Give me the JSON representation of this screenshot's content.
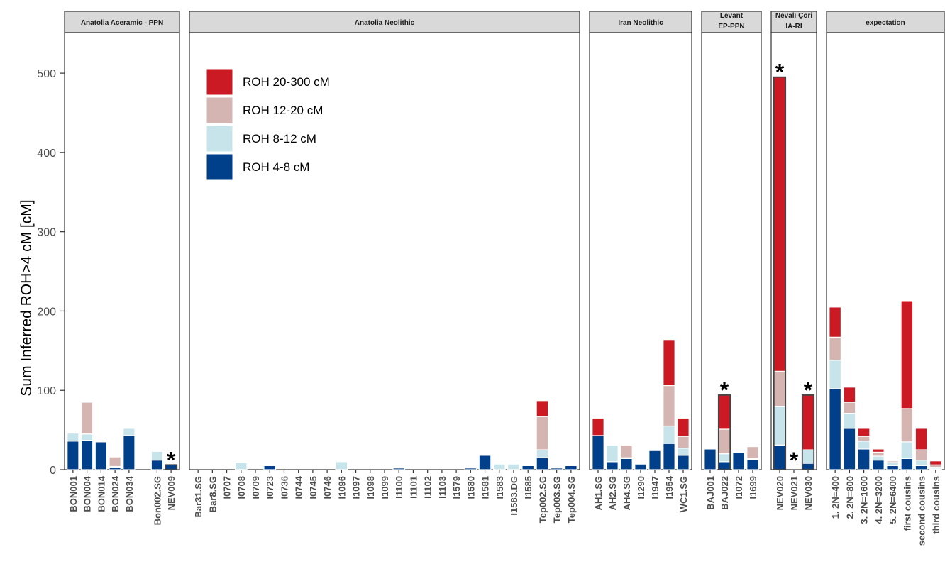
{
  "chart_data": {
    "type": "bar",
    "stacked": true,
    "ylabel": "Sum Inferred ROH>4 cM [cM]",
    "ylim": [
      0,
      550
    ],
    "yticks": [
      0,
      100,
      200,
      300,
      400,
      500
    ],
    "grid": false,
    "legend_position": "top-left of the Anatolia Neolithic panel",
    "legend": [
      {
        "key": "r20",
        "label": "ROH 20-300 cM",
        "color": "#cb1a24"
      },
      {
        "key": "r12",
        "label": "ROH 12-20 cM",
        "color": "#d5b5b1"
      },
      {
        "key": "r8",
        "label": "ROH 8-12 cM",
        "color": "#c7e4ea"
      },
      {
        "key": "r4",
        "label": "ROH 4-8 cM",
        "color": "#003f8a"
      }
    ],
    "stack_order": [
      "r4",
      "r8",
      "r12",
      "r20"
    ],
    "panels": [
      {
        "title": [
          "Anatolia Aceramic -  PPN"
        ],
        "samples": [
          {
            "name": "BON001",
            "r4": 36,
            "r8": 10,
            "r12": 0,
            "r20": 0
          },
          {
            "name": "BON004",
            "r4": 37,
            "r8": 8,
            "r12": 40,
            "r20": 0
          },
          {
            "name": "BON014",
            "r4": 35,
            "r8": 0,
            "r12": 0,
            "r20": 0
          },
          {
            "name": "BON024",
            "r4": 3,
            "r8": 1,
            "r12": 12,
            "r20": 0
          },
          {
            "name": "BON034",
            "r4": 43,
            "r8": 9,
            "r12": 0,
            "r20": 0
          },
          {
            "name": "",
            "r4": 0,
            "r8": 0,
            "r12": 0,
            "r20": 0
          },
          {
            "name": "Bon002.SG",
            "r4": 12,
            "r8": 11,
            "r12": 0,
            "r20": 0
          },
          {
            "name": "NEV009",
            "r4": 6,
            "r8": 0,
            "r12": 0,
            "r20": 0,
            "star": "top",
            "outlined": true
          }
        ]
      },
      {
        "title": [
          "Anatolia Neolithic"
        ],
        "samples": [
          {
            "name": "Bar31.SG",
            "r4": 0,
            "r8": 0,
            "r12": 0,
            "r20": 0
          },
          {
            "name": "Bar8.SG",
            "r4": 0,
            "r8": 0,
            "r12": 0,
            "r20": 0
          },
          {
            "name": "I0707",
            "r4": 0,
            "r8": 0,
            "r12": 0,
            "r20": 0
          },
          {
            "name": "I0708",
            "r4": 0,
            "r8": 9,
            "r12": 0,
            "r20": 0
          },
          {
            "name": "I0709",
            "r4": 0,
            "r8": 0,
            "r12": 0,
            "r20": 0
          },
          {
            "name": "I0723",
            "r4": 5,
            "r8": 0,
            "r12": 0,
            "r20": 0
          },
          {
            "name": "I0736",
            "r4": 0,
            "r8": 0,
            "r12": 0,
            "r20": 0
          },
          {
            "name": "I0744",
            "r4": 0,
            "r8": 0,
            "r12": 0,
            "r20": 0
          },
          {
            "name": "I0745",
            "r4": 0,
            "r8": 0,
            "r12": 0,
            "r20": 0
          },
          {
            "name": "I0746",
            "r4": 0,
            "r8": 0,
            "r12": 0,
            "r20": 0
          },
          {
            "name": "I1096",
            "r4": 0,
            "r8": 10,
            "r12": 0,
            "r20": 0
          },
          {
            "name": "I1097",
            "r4": 0,
            "r8": 0,
            "r12": 0,
            "r20": 0
          },
          {
            "name": "I1098",
            "r4": 0,
            "r8": 0,
            "r12": 0,
            "r20": 0
          },
          {
            "name": "I1099",
            "r4": 0,
            "r8": 0,
            "r12": 0,
            "r20": 0
          },
          {
            "name": "I1100",
            "r4": 2,
            "r8": 0,
            "r12": 0,
            "r20": 0
          },
          {
            "name": "I1101",
            "r4": 0,
            "r8": 0,
            "r12": 0,
            "r20": 0
          },
          {
            "name": "I1102",
            "r4": 0,
            "r8": 0,
            "r12": 0,
            "r20": 0
          },
          {
            "name": "I1103",
            "r4": 0,
            "r8": 0,
            "r12": 0,
            "r20": 0
          },
          {
            "name": "I1579",
            "r4": 0,
            "r8": 0,
            "r12": 0,
            "r20": 0
          },
          {
            "name": "I1580",
            "r4": 2,
            "r8": 0,
            "r12": 0,
            "r20": 0
          },
          {
            "name": "I1581",
            "r4": 18,
            "r8": 0,
            "r12": 0,
            "r20": 0
          },
          {
            "name": "I1583",
            "r4": 0,
            "r8": 7,
            "r12": 0,
            "r20": 0
          },
          {
            "name": "I1583.DG",
            "r4": 0,
            "r8": 7,
            "r12": 0,
            "r20": 0
          },
          {
            "name": "I1585",
            "r4": 5,
            "r8": 0,
            "r12": 0,
            "r20": 0
          },
          {
            "name": "Tep002.SG",
            "r4": 15,
            "r8": 10,
            "r12": 42,
            "r20": 20
          },
          {
            "name": "Tep003.SG",
            "r4": 2,
            "r8": 0,
            "r12": 0,
            "r20": 0
          },
          {
            "name": "Tep004.SG",
            "r4": 5,
            "r8": 0,
            "r12": 0,
            "r20": 0
          }
        ]
      },
      {
        "title": [
          "Iran Neolithic"
        ],
        "samples": [
          {
            "name": "AH1.SG",
            "r4": 43,
            "r8": 0,
            "r12": 0,
            "r20": 22
          },
          {
            "name": "AH2.SG",
            "r4": 10,
            "r8": 21,
            "r12": 0,
            "r20": 0
          },
          {
            "name": "AH4.SG",
            "r4": 14,
            "r8": 1,
            "r12": 16,
            "r20": 0
          },
          {
            "name": "I1290",
            "r4": 7,
            "r8": 0,
            "r12": 0,
            "r20": 0
          },
          {
            "name": "I1947",
            "r4": 24,
            "r8": 0,
            "r12": 0,
            "r20": 0
          },
          {
            "name": "I1954",
            "r4": 33,
            "r8": 22,
            "r12": 51,
            "r20": 58
          },
          {
            "name": "WC1.SG",
            "r4": 18,
            "r8": 9,
            "r12": 15,
            "r20": 23
          }
        ]
      },
      {
        "title": [
          "Levant",
          "EP-PPN"
        ],
        "samples": [
          {
            "name": "BAJ001",
            "r4": 26,
            "r8": 0,
            "r12": 0,
            "r20": 0
          },
          {
            "name": "BAJ022",
            "r4": 10,
            "r8": 10,
            "r12": 31,
            "r20": 43,
            "star": "top",
            "outlined": true
          },
          {
            "name": "I1072",
            "r4": 22,
            "r8": 0,
            "r12": 0,
            "r20": 0
          },
          {
            "name": "I1699",
            "r4": 13,
            "r8": 1,
            "r12": 15,
            "r20": 0
          }
        ]
      },
      {
        "title": [
          "Nevalı Çori",
          "IA-RI"
        ],
        "samples": [
          {
            "name": "NEV020",
            "r4": 31,
            "r8": 49,
            "r12": 44,
            "r20": 371,
            "star": "top",
            "outlined": true
          },
          {
            "name": "NEV021",
            "r4": 0,
            "r8": 0,
            "r12": 0,
            "r20": 0,
            "star": "bottom"
          },
          {
            "name": "NEV030",
            "r4": 8,
            "r8": 17,
            "r12": 0,
            "r20": 69,
            "star": "top",
            "outlined": true
          }
        ]
      },
      {
        "title": [
          "expectation"
        ],
        "samples": [
          {
            "name": "1. 2N=400",
            "r4": 102,
            "r8": 36,
            "r12": 29,
            "r20": 38
          },
          {
            "name": "2. 2N=800",
            "r4": 52,
            "r8": 19,
            "r12": 14,
            "r20": 19
          },
          {
            "name": "3. 2N=1600",
            "r4": 26,
            "r8": 10,
            "r12": 6,
            "r20": 10
          },
          {
            "name": "4. 2N=3200",
            "r4": 12,
            "r8": 5,
            "r12": 5,
            "r20": 4
          },
          {
            "name": "5. 2N=6400",
            "r4": 5,
            "r8": 4,
            "r12": 2,
            "r20": 1
          },
          {
            "name": "first cousins",
            "r4": 14,
            "r8": 21,
            "r12": 42,
            "r20": 136
          },
          {
            "name": "second cousins",
            "r4": 5,
            "r8": 7,
            "r12": 13,
            "r20": 27
          },
          {
            "name": "third cousins",
            "r4": 1,
            "r8": 2,
            "r12": 3,
            "r20": 5
          }
        ]
      }
    ]
  }
}
